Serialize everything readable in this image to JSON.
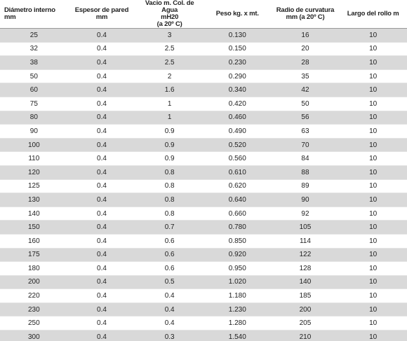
{
  "table": {
    "header": [
      [
        "Diámetro interno mm"
      ],
      [
        "Espesor de pared mm"
      ],
      [
        "Vacio m. Col. de Agua",
        "mH20",
        "(a 20º C)"
      ],
      [
        "Peso kg. x mt."
      ],
      [
        "Radio de curvatura",
        "mm (a 20º C)"
      ],
      [
        "Largo del rollo m"
      ]
    ],
    "rows": [
      [
        "25",
        "0.4",
        "3",
        "0.130",
        "16",
        "10"
      ],
      [
        "32",
        "0.4",
        "2.5",
        "0.150",
        "20",
        "10"
      ],
      [
        "38",
        "0.4",
        "2.5",
        "0.230",
        "28",
        "10"
      ],
      [
        "50",
        "0.4",
        "2",
        "0.290",
        "35",
        "10"
      ],
      [
        "60",
        "0.4",
        "1.6",
        "0.340",
        "42",
        "10"
      ],
      [
        "75",
        "0.4",
        "1",
        "0.420",
        "50",
        "10"
      ],
      [
        "80",
        "0.4",
        "1",
        "0.460",
        "56",
        "10"
      ],
      [
        "90",
        "0.4",
        "0.9",
        "0.490",
        "63",
        "10"
      ],
      [
        "100",
        "0.4",
        "0.9",
        "0.520",
        "70",
        "10"
      ],
      [
        "110",
        "0.4",
        "0.9",
        "0.560",
        "84",
        "10"
      ],
      [
        "120",
        "0.4",
        "0.8",
        "0.610",
        "88",
        "10"
      ],
      [
        "125",
        "0.4",
        "0.8",
        "0.620",
        "89",
        "10"
      ],
      [
        "130",
        "0.4",
        "0.8",
        "0.640",
        "90",
        "10"
      ],
      [
        "140",
        "0.4",
        "0.8",
        "0.660",
        "92",
        "10"
      ],
      [
        "150",
        "0.4",
        "0.7",
        "0.780",
        "105",
        "10"
      ],
      [
        "160",
        "0.4",
        "0.6",
        "0.850",
        "114",
        "10"
      ],
      [
        "175",
        "0.4",
        "0.6",
        "0.920",
        "122",
        "10"
      ],
      [
        "180",
        "0.4",
        "0.6",
        "0.950",
        "128",
        "10"
      ],
      [
        "200",
        "0.4",
        "0.5",
        "1.020",
        "140",
        "10"
      ],
      [
        "220",
        "0.4",
        "0.4",
        "1.180",
        "185",
        "10"
      ],
      [
        "230",
        "0.4",
        "0.4",
        "1.230",
        "200",
        "10"
      ],
      [
        "250",
        "0.4",
        "0.4",
        "1.280",
        "205",
        "10"
      ],
      [
        "300",
        "0.4",
        "0.3",
        "1.540",
        "210",
        "10"
      ]
    ]
  }
}
